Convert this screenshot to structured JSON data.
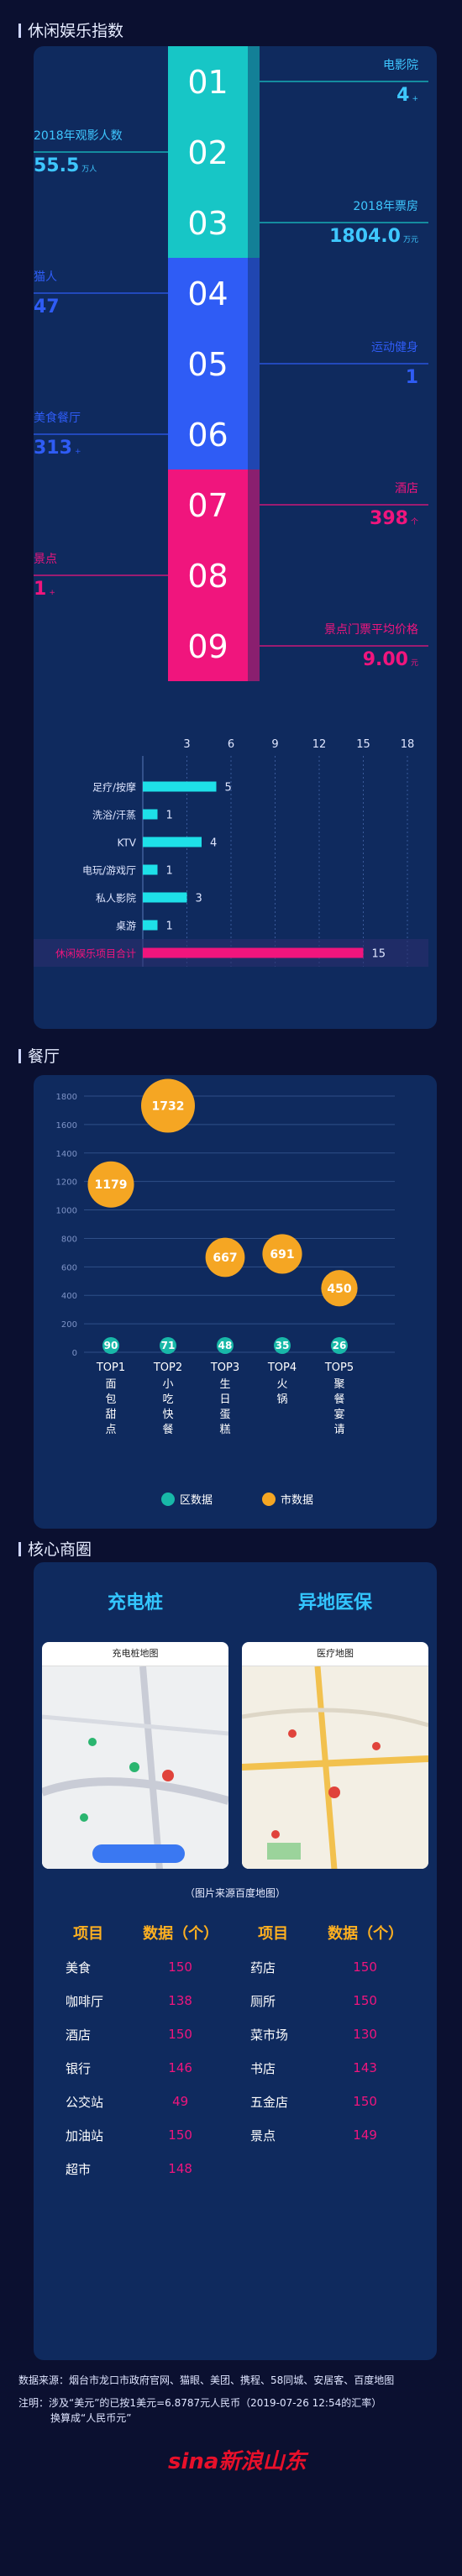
{
  "leisure": {
    "title": "休闲娱乐指数",
    "steps": [
      "01",
      "02",
      "03",
      "04",
      "05",
      "06",
      "07",
      "08",
      "09"
    ],
    "step_colors": [
      "#17c6c6",
      "#17c6c6",
      "#17c6c6",
      "#2f5cf5",
      "#2f5cf5",
      "#2f5cf5",
      "#f0157d",
      "#f0157d",
      "#f0157d"
    ],
    "stats": [
      {
        "label": "电影院",
        "value": "4",
        "unit": "+"
      },
      {
        "label": "2018年观影人数",
        "value": "55.5",
        "unit": "万人"
      },
      {
        "label": "2018年票房",
        "value": "1804.0",
        "unit": "万元"
      },
      {
        "label": "猫人",
        "value": "47",
        "unit": ""
      },
      {
        "label": "运动健身",
        "value": "1",
        "unit": ""
      },
      {
        "label": "美食餐厅",
        "value": "313",
        "unit": "+"
      },
      {
        "label": "酒店",
        "value": "398",
        "unit": "个"
      },
      {
        "label": "景点",
        "value": "1",
        "unit": "+"
      },
      {
        "label": "景点门票平均价格",
        "value": "9.00",
        "unit": "元"
      }
    ]
  },
  "chart_data": [
    {
      "type": "bar",
      "orientation": "horizontal",
      "categories": [
        "足疗/按摩",
        "洗浴/汗蒸",
        "KTV",
        "电玩/游戏厅",
        "私人影院",
        "桌游",
        "休闲娱乐项目合计"
      ],
      "values": [
        5,
        1,
        4,
        1,
        3,
        1,
        15
      ],
      "xticks": [
        3,
        6,
        9,
        12,
        15,
        18
      ],
      "xlim": [
        0,
        18
      ],
      "colors": [
        "#1ee0e8",
        "#1ee0e8",
        "#1ee0e8",
        "#1ee0e8",
        "#1ee0e8",
        "#1ee0e8",
        "#f0157d"
      ]
    },
    {
      "type": "scatter",
      "title": "餐厅",
      "categories": [
        "TOP1",
        "TOP2",
        "TOP3",
        "TOP4",
        "TOP5"
      ],
      "subcategories": [
        "面包甜点",
        "小吃快餐",
        "生日蛋糕",
        "火锅",
        "聚餐宴请"
      ],
      "yticks": [
        0,
        200,
        400,
        600,
        800,
        1000,
        1200,
        1400,
        1600,
        1800
      ],
      "ylim": [
        0,
        1800
      ],
      "series": [
        {
          "name": "区数据",
          "color": "#18b8a8",
          "values": [
            90,
            71,
            48,
            35,
            26
          ]
        },
        {
          "name": "市数据",
          "color": "#f5a623",
          "values": [
            1179,
            1732,
            667,
            691,
            450
          ]
        }
      ]
    }
  ],
  "restaurant": {
    "title": "餐厅"
  },
  "business": {
    "title": "核心商圈",
    "card1_title": "充电桩",
    "card2_title": "异地医保",
    "card1_header": "充电桩地图",
    "card2_header": "医疗地图",
    "caption": "（图片来源百度地图）",
    "headers": [
      "项目",
      "数据（个）",
      "项目",
      "数据（个）"
    ],
    "rows": [
      [
        "美食",
        "150",
        "药店",
        "150"
      ],
      [
        "咖啡厅",
        "138",
        "厕所",
        "150"
      ],
      [
        "酒店",
        "150",
        "菜市场",
        "130"
      ],
      [
        "银行",
        "146",
        "书店",
        "143"
      ],
      [
        "公交站",
        "49",
        "五金店",
        "150"
      ],
      [
        "加油站",
        "150",
        "景点",
        "149"
      ],
      [
        "超市",
        "148",
        "",
        ""
      ]
    ]
  },
  "footer": {
    "source": "数据来源：烟台市龙口市政府官网、猫眼、美团、携程、58同城、安居客、百度地图",
    "note1": "注明：涉及“美元”的已按1美元=6.8787元人民币（2019-07-26 12:54的汇率）",
    "note2": "换算成“人民币元”",
    "logo": "sina新浪山东"
  }
}
